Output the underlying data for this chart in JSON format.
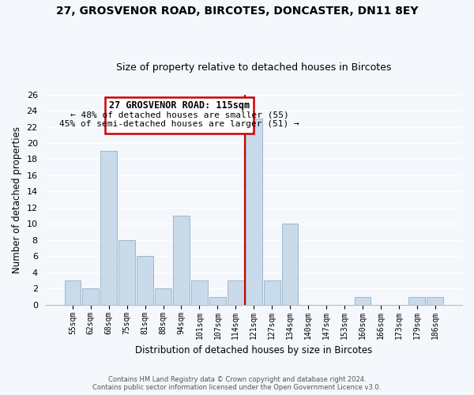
{
  "title": "27, GROSVENOR ROAD, BIRCOTES, DONCASTER, DN11 8EY",
  "subtitle": "Size of property relative to detached houses in Bircotes",
  "xlabel": "Distribution of detached houses by size in Bircotes",
  "ylabel": "Number of detached properties",
  "bar_labels": [
    "55sqm",
    "62sqm",
    "68sqm",
    "75sqm",
    "81sqm",
    "88sqm",
    "94sqm",
    "101sqm",
    "107sqm",
    "114sqm",
    "121sqm",
    "127sqm",
    "134sqm",
    "140sqm",
    "147sqm",
    "153sqm",
    "160sqm",
    "166sqm",
    "173sqm",
    "179sqm",
    "186sqm"
  ],
  "bar_values": [
    3,
    2,
    19,
    8,
    6,
    2,
    11,
    3,
    1,
    3,
    23,
    3,
    10,
    0,
    0,
    0,
    1,
    0,
    0,
    1,
    1
  ],
  "bar_color": "#c9daea",
  "bar_edge_color": "#9ab8cc",
  "vline_x": 9.5,
  "vline_color": "#cc0000",
  "annotation_title": "27 GROSVENOR ROAD: 115sqm",
  "annotation_line1": "← 48% of detached houses are smaller (55)",
  "annotation_line2": "45% of semi-detached houses are larger (51) →",
  "annotation_box_color": "#ffffff",
  "annotation_box_edge": "#cc0000",
  "ylim": [
    0,
    26
  ],
  "yticks": [
    0,
    2,
    4,
    6,
    8,
    10,
    12,
    14,
    16,
    18,
    20,
    22,
    24,
    26
  ],
  "footer1": "Contains HM Land Registry data © Crown copyright and database right 2024.",
  "footer2": "Contains public sector information licensed under the Open Government Licence v3.0.",
  "bg_color": "#f4f7fb"
}
